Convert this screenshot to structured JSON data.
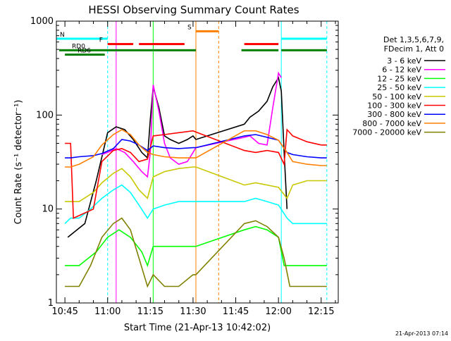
{
  "chart_data": {
    "type": "line",
    "title": "HESSI Observing Summary Count Rates",
    "xlabel": "Start Time (21-Apr-13 10:42:02)",
    "ylabel": "Count Rate (s⁻¹ detector⁻¹)",
    "y_scale": "log",
    "ylim": [
      1,
      1000
    ],
    "xlim": [
      "10:42",
      "12:21"
    ],
    "x_ticks": [
      "10:45",
      "11:00",
      "11:15",
      "11:30",
      "11:45",
      "12:00",
      "12:15"
    ],
    "y_ticks": [
      "1",
      "10",
      "100",
      "1000"
    ],
    "footer": "21-Apr-2013 07:14",
    "legend_header": [
      "Det 1,3,5,6,7,9,",
      "FDecim 1, Att 0"
    ],
    "legend_position": "right",
    "data_gap": [
      "11:33",
      "11:48"
    ],
    "series": [
      {
        "name": "3 - 6 keV",
        "color": "#000000",
        "x": [
          "10:46",
          "10:52",
          "10:56",
          "11:00",
          "11:03",
          "11:06",
          "11:09",
          "11:12",
          "11:14",
          "11:15",
          "11:16",
          "11:18",
          "11:20",
          "11:22",
          "11:25",
          "11:28",
          "11:30",
          "11:31",
          "11:48",
          "11:50",
          "11:53",
          "11:56",
          "11:58",
          "12:00",
          "12:01",
          "12:02",
          "12:03"
        ],
        "values": [
          5,
          7,
          20,
          65,
          75,
          70,
          55,
          40,
          35,
          90,
          200,
          120,
          60,
          55,
          50,
          55,
          60,
          55,
          80,
          95,
          110,
          140,
          200,
          250,
          180,
          40,
          10
        ]
      },
      {
        "name": "6 - 12 keV",
        "color": "#ff00ff",
        "x": [
          "10:58",
          "11:00",
          "11:03",
          "11:06",
          "11:09",
          "11:12",
          "11:14",
          "11:15",
          "11:16",
          "11:18",
          "11:20",
          "11:22",
          "11:25",
          "11:28",
          "11:30",
          "11:31",
          "11:48",
          "11:50",
          "11:53",
          "11:56",
          "11:58",
          "12:00",
          "12:01"
        ],
        "values": [
          38,
          40,
          44,
          40,
          32,
          25,
          22,
          40,
          210,
          110,
          50,
          35,
          30,
          32,
          40,
          45,
          58,
          60,
          50,
          48,
          120,
          280,
          250
        ]
      },
      {
        "name": "12 - 25 keV",
        "color": "#00ff00",
        "x": [
          "10:45",
          "10:50",
          "10:56",
          "11:00",
          "11:04",
          "11:08",
          "11:12",
          "11:14",
          "11:16",
          "11:20",
          "11:25",
          "11:30",
          "11:31",
          "11:48",
          "11:52",
          "11:56",
          "12:00",
          "12:02",
          "12:04",
          "12:10",
          "12:15",
          "12:17"
        ],
        "values": [
          2.5,
          2.5,
          3.5,
          5,
          6,
          5,
          3.5,
          2.5,
          4,
          4,
          4,
          4,
          4,
          6,
          6.5,
          6,
          5,
          2.5,
          2.5,
          2.5,
          2.5,
          2.5
        ]
      },
      {
        "name": "25 - 50 keV",
        "color": "#00ffff",
        "x": [
          "10:45",
          "10:47",
          "10:50",
          "10:54",
          "10:58",
          "11:02",
          "11:05",
          "11:08",
          "11:11",
          "11:14",
          "11:16",
          "11:20",
          "11:25",
          "11:30",
          "11:31",
          "11:48",
          "11:52",
          "11:56",
          "12:00",
          "12:03",
          "12:05",
          "12:10",
          "12:15",
          "12:17"
        ],
        "values": [
          7,
          8,
          8,
          10,
          13,
          16,
          18,
          15,
          11,
          8,
          10,
          11,
          12,
          12,
          12,
          12,
          13,
          12,
          11,
          8,
          7,
          7,
          7,
          7
        ]
      },
      {
        "name": "50 - 100 keV",
        "color": "#c8c800",
        "x": [
          "10:45",
          "10:47",
          "10:50",
          "10:55",
          "10:58",
          "11:02",
          "11:05",
          "11:08",
          "11:11",
          "11:14",
          "11:16",
          "11:20",
          "11:25",
          "11:30",
          "11:31",
          "11:48",
          "11:52",
          "11:56",
          "12:00",
          "12:03",
          "12:05",
          "12:10",
          "12:15",
          "12:17"
        ],
        "values": [
          12,
          12,
          12,
          15,
          19,
          24,
          27,
          22,
          16,
          13,
          22,
          25,
          27,
          28,
          28,
          18,
          19,
          18,
          17,
          13,
          18,
          20,
          20,
          20
        ]
      },
      {
        "name": "100 - 300 keV",
        "color": "#ff0000",
        "x": [
          "10:45",
          "10:47",
          "10:48",
          "10:55",
          "10:58",
          "11:02",
          "11:05",
          "11:08",
          "11:11",
          "11:14",
          "11:16",
          "11:20",
          "11:25",
          "11:30",
          "11:31",
          "11:48",
          "11:52",
          "11:56",
          "12:00",
          "12:02",
          "12:03",
          "12:05",
          "12:10",
          "12:15",
          "12:17"
        ],
        "values": [
          50,
          50,
          8,
          10,
          32,
          42,
          44,
          40,
          32,
          34,
          60,
          62,
          65,
          68,
          66,
          42,
          40,
          42,
          40,
          30,
          70,
          60,
          52,
          48,
          48
        ]
      },
      {
        "name": "300 - 800 keV",
        "color": "#0000ff",
        "x": [
          "10:45",
          "10:47",
          "10:50",
          "10:55",
          "10:58",
          "11:02",
          "11:05",
          "11:08",
          "11:11",
          "11:14",
          "11:16",
          "11:20",
          "11:25",
          "11:30",
          "11:31",
          "11:48",
          "11:52",
          "11:56",
          "12:00",
          "12:03",
          "12:05",
          "12:10",
          "12:15",
          "12:17"
        ],
        "values": [
          35,
          35,
          36,
          37,
          39,
          44,
          55,
          53,
          48,
          42,
          47,
          45,
          44,
          45,
          45,
          60,
          62,
          58,
          54,
          40,
          38,
          36,
          35,
          35
        ]
      },
      {
        "name": "800 - 7000 keV",
        "color": "#ff8000",
        "x": [
          "10:45",
          "10:47",
          "10:50",
          "10:55",
          "10:58",
          "11:02",
          "11:05",
          "11:08",
          "11:11",
          "11:14",
          "11:16",
          "11:20",
          "11:25",
          "11:30",
          "11:31",
          "11:48",
          "11:52",
          "11:56",
          "12:00",
          "12:03",
          "12:05",
          "12:10",
          "12:15",
          "12:17"
        ],
        "values": [
          28,
          28,
          30,
          36,
          48,
          62,
          70,
          62,
          48,
          40,
          38,
          36,
          35,
          35,
          35,
          68,
          68,
          62,
          54,
          40,
          32,
          30,
          29,
          29
        ]
      },
      {
        "name": "7000 - 20000 keV",
        "color": "#808000",
        "x": [
          "10:45",
          "10:50",
          "10:54",
          "10:58",
          "11:02",
          "11:05",
          "11:08",
          "11:11",
          "11:14",
          "11:16",
          "11:20",
          "11:25",
          "11:30",
          "11:31",
          "11:48",
          "11:52",
          "11:56",
          "12:00",
          "12:02",
          "12:04",
          "12:10",
          "12:15",
          "12:17"
        ],
        "values": [
          1.5,
          1.5,
          2.5,
          5,
          7,
          8,
          6,
          3,
          1.5,
          2,
          1.5,
          1.5,
          2,
          2,
          7,
          7.5,
          6.5,
          5,
          3,
          1.5,
          1.5,
          1.5,
          1.5
        ]
      }
    ],
    "state_bars": [
      {
        "label": "N",
        "color": "#00ffff",
        "y_value": 650,
        "segments": [
          [
            "10:42",
            "11:00"
          ],
          [
            "12:01",
            "12:17"
          ]
        ]
      },
      {
        "label": "F",
        "color": "#ff0000",
        "y_value": 570,
        "segments": [
          [
            "11:00",
            "11:09"
          ],
          [
            "11:11",
            "11:27"
          ],
          [
            "11:48",
            "12:00"
          ]
        ]
      },
      {
        "label": "S",
        "color": "#ff8000",
        "y_value": 780,
        "segments": [
          [
            "11:31",
            "11:39"
          ]
        ]
      },
      {
        "label": "RD0",
        "color": "#008000",
        "y_value": 490,
        "segments": [
          [
            "10:43",
            "11:16"
          ],
          [
            "11:16",
            "11:31"
          ],
          [
            "11:47",
            "12:00"
          ],
          [
            "12:01",
            "12:17"
          ]
        ]
      },
      {
        "label": "RD6",
        "color": "#008000",
        "y_value": 440,
        "segments": [
          [
            "10:45",
            "10:59"
          ]
        ]
      }
    ],
    "vertical_markers": [
      {
        "color": "#00ffff",
        "style": "dashed",
        "x": "11:00"
      },
      {
        "color": "#00ffff",
        "style": "solid",
        "x": "12:01"
      },
      {
        "color": "#00ffff",
        "style": "dashed",
        "x": "12:17"
      },
      {
        "color": "#ff8000",
        "style": "solid",
        "x": "11:31"
      },
      {
        "color": "#ff8000",
        "style": "dashed",
        "x": "11:39"
      },
      {
        "color": "#00ff00",
        "style": "solid",
        "x": "11:16"
      },
      {
        "color": "#ff00ff",
        "style": "solid",
        "x": "11:03"
      }
    ]
  }
}
